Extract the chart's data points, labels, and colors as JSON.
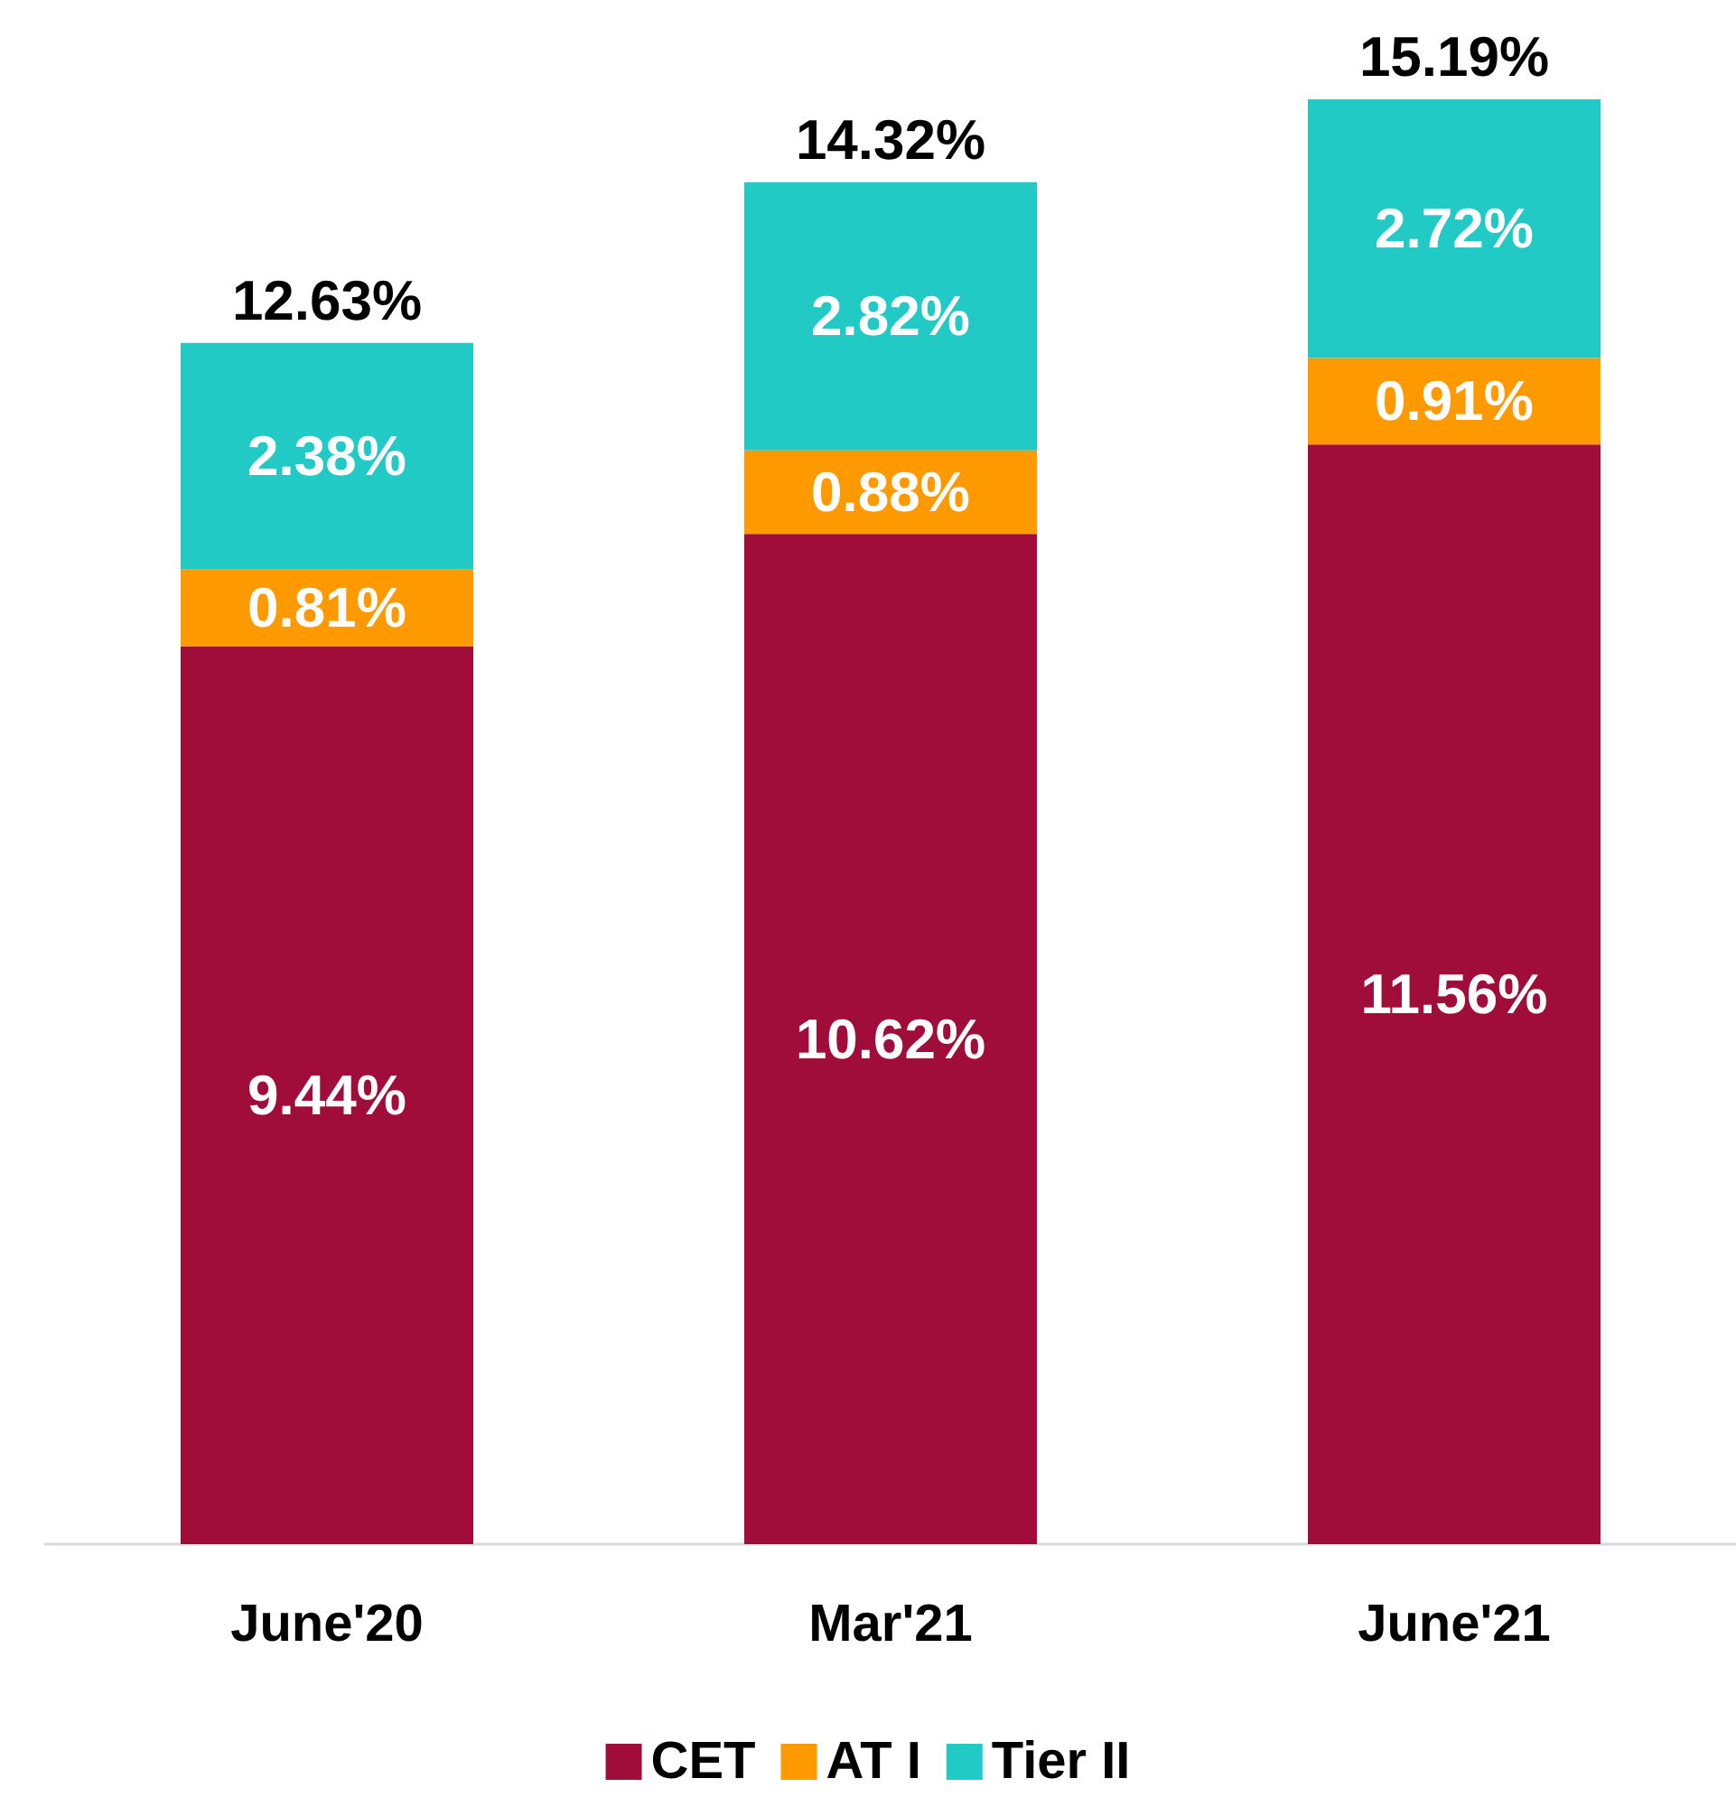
{
  "chart_data": {
    "type": "bar",
    "stacked": true,
    "categories": [
      "June'20",
      "Mar'21",
      "June'21"
    ],
    "series": [
      {
        "name": "CET",
        "color": "#a00d3a",
        "values": [
          9.44,
          10.62,
          11.56
        ],
        "value_labels": [
          "9.44%",
          "10.62%",
          "11.56%"
        ]
      },
      {
        "name": "AT I",
        "color": "#ff9900",
        "values": [
          0.81,
          0.88,
          0.91
        ],
        "value_labels": [
          "0.81%",
          "0.88%",
          "0.91%"
        ]
      },
      {
        "name": "Tier II",
        "color": "#22cac6",
        "values": [
          2.38,
          2.82,
          2.72
        ],
        "value_labels": [
          "2.38%",
          "2.82%",
          "2.72%"
        ]
      }
    ],
    "totals": [
      "12.63%",
      "14.32%",
      "15.19%"
    ],
    "legend": "bottom"
  }
}
